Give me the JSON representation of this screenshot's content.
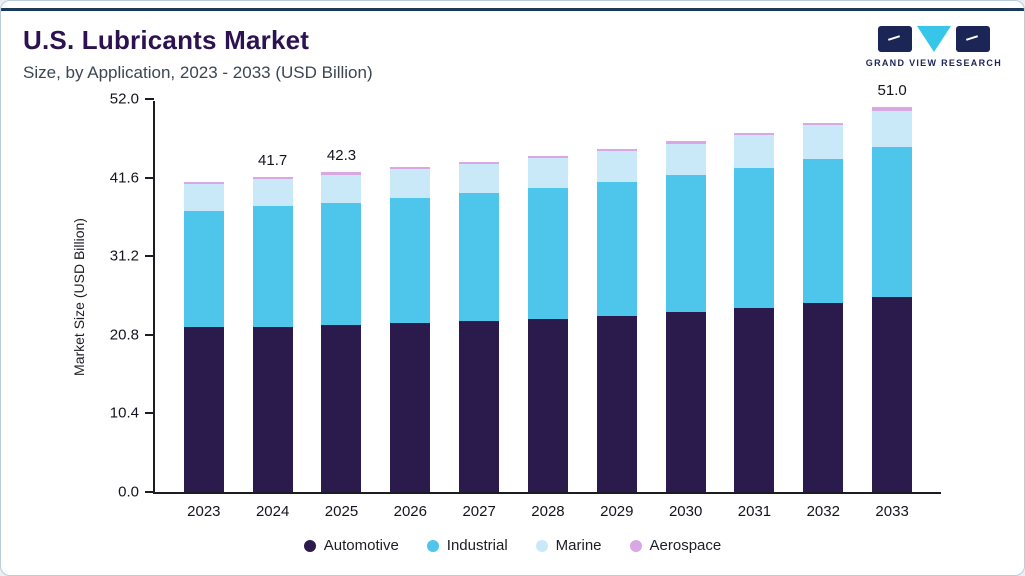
{
  "header": {
    "title": "U.S. Lubricants Market",
    "subtitle": "Size, by Application, 2023 - 2033 (USD Billion)",
    "brand": "GRAND VIEW RESEARCH"
  },
  "chart_data": {
    "type": "bar",
    "stacked": true,
    "title": "U.S. Lubricants Market Size, by Application, 2023 - 2033 (USD Billion)",
    "xlabel": "",
    "ylabel": "Market Size (USD Billion)",
    "ylim": [
      0,
      52.0
    ],
    "yticks": [
      "0.0",
      "10.4",
      "20.8",
      "31.2",
      "41.6",
      "52.0"
    ],
    "grid": false,
    "legend_position": "bottom",
    "categories": [
      "2023",
      "2024",
      "2025",
      "2026",
      "2027",
      "2028",
      "2029",
      "2030",
      "2031",
      "2032",
      "2033"
    ],
    "series": [
      {
        "name": "Automotive",
        "color": "#2b1b4d",
        "values": [
          21.8,
          21.9,
          22.1,
          22.3,
          22.6,
          22.9,
          23.3,
          23.8,
          24.3,
          25.0,
          25.8
        ]
      },
      {
        "name": "Industrial",
        "color": "#4ec6ec",
        "values": [
          15.4,
          15.9,
          16.2,
          16.6,
          16.9,
          17.3,
          17.7,
          18.1,
          18.6,
          19.1,
          19.9
        ]
      },
      {
        "name": "Marine",
        "color": "#c9e9f8",
        "values": [
          3.5,
          3.6,
          3.7,
          3.8,
          3.9,
          4.0,
          4.1,
          4.2,
          4.3,
          4.4,
          4.7
        ]
      },
      {
        "name": "Aerospace",
        "color": "#d9a8e4",
        "values": [
          0.3,
          0.3,
          0.3,
          0.3,
          0.3,
          0.3,
          0.3,
          0.3,
          0.3,
          0.3,
          0.6
        ]
      }
    ],
    "totals": [
      41.0,
      41.7,
      42.3,
      43.0,
      43.7,
      44.5,
      45.4,
      46.4,
      47.5,
      48.8,
      51.0
    ],
    "bar_labels": {
      "2024": "41.7",
      "2025": "42.3",
      "2033": "51.0"
    }
  },
  "colors": {
    "accent_line": "#1a3a5c",
    "title": "#2c1250",
    "axis": "#1c1c24"
  }
}
